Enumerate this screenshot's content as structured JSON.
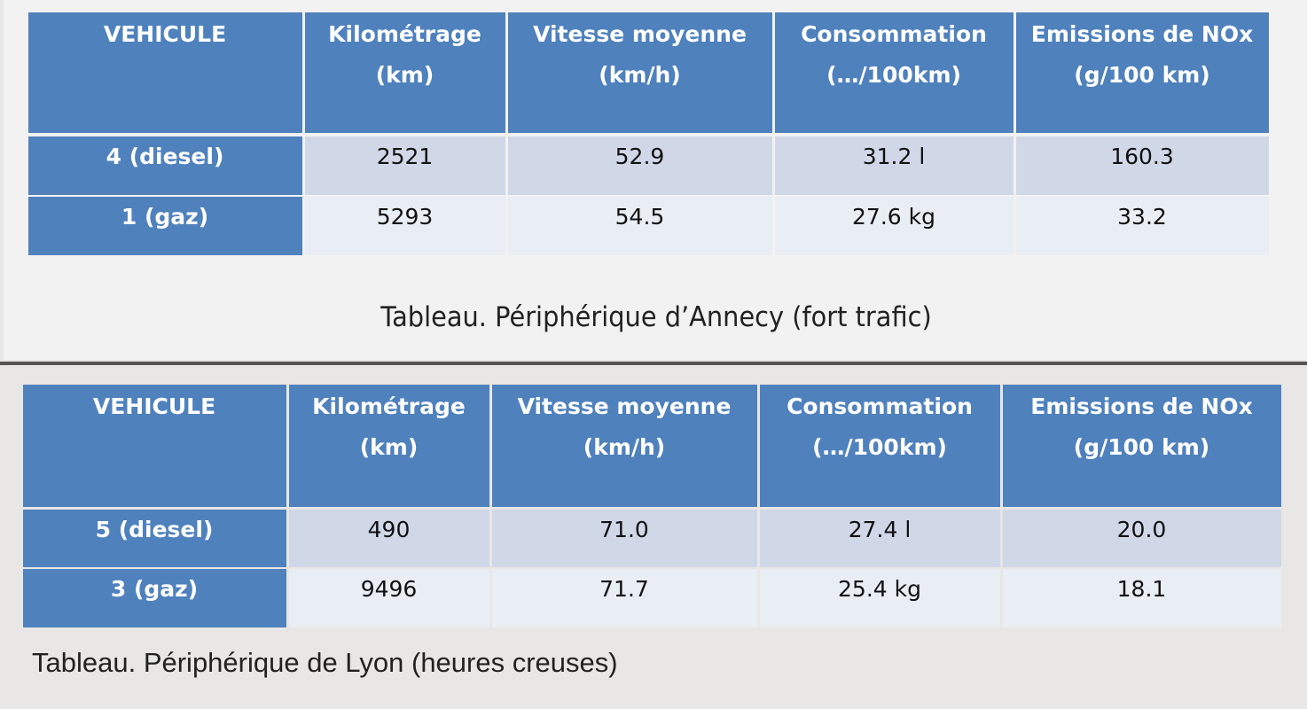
{
  "tables": [
    {
      "header": [
        [
          "VEHICULE"
        ],
        [
          "Kilométrage",
          "(km)"
        ],
        [
          "Vitesse moyenne",
          "(km/h)"
        ],
        [
          "Consommation",
          "(…/100km)"
        ],
        [
          "Emissions de NOx",
          "(g/100 km)"
        ]
      ],
      "rows": [
        [
          "4 (diesel)",
          "2521",
          "52.9",
          "31.2 l",
          "160.3"
        ],
        [
          "1 (gaz)",
          "5293",
          "54.5",
          "27.6 kg",
          "33.2"
        ]
      ],
      "caption": "Tableau. Périphérique d’Annecy (fort trafic)"
    },
    {
      "header": [
        [
          "VEHICULE"
        ],
        [
          "Kilométrage",
          "(km)"
        ],
        [
          "Vitesse moyenne",
          "(km/h)"
        ],
        [
          "Consommation",
          "(…/100km)"
        ],
        [
          "Emissions de NOx",
          "(g/100 km)"
        ]
      ],
      "rows": [
        [
          "5 (diesel)",
          "490",
          "71.0",
          "27.4 l",
          "20.0"
        ],
        [
          "3 (gaz)",
          "9496",
          "71.7",
          "25.4 kg",
          "18.1"
        ]
      ],
      "caption": "Tableau. Périphérique de Lyon (heures creuses)"
    }
  ]
}
